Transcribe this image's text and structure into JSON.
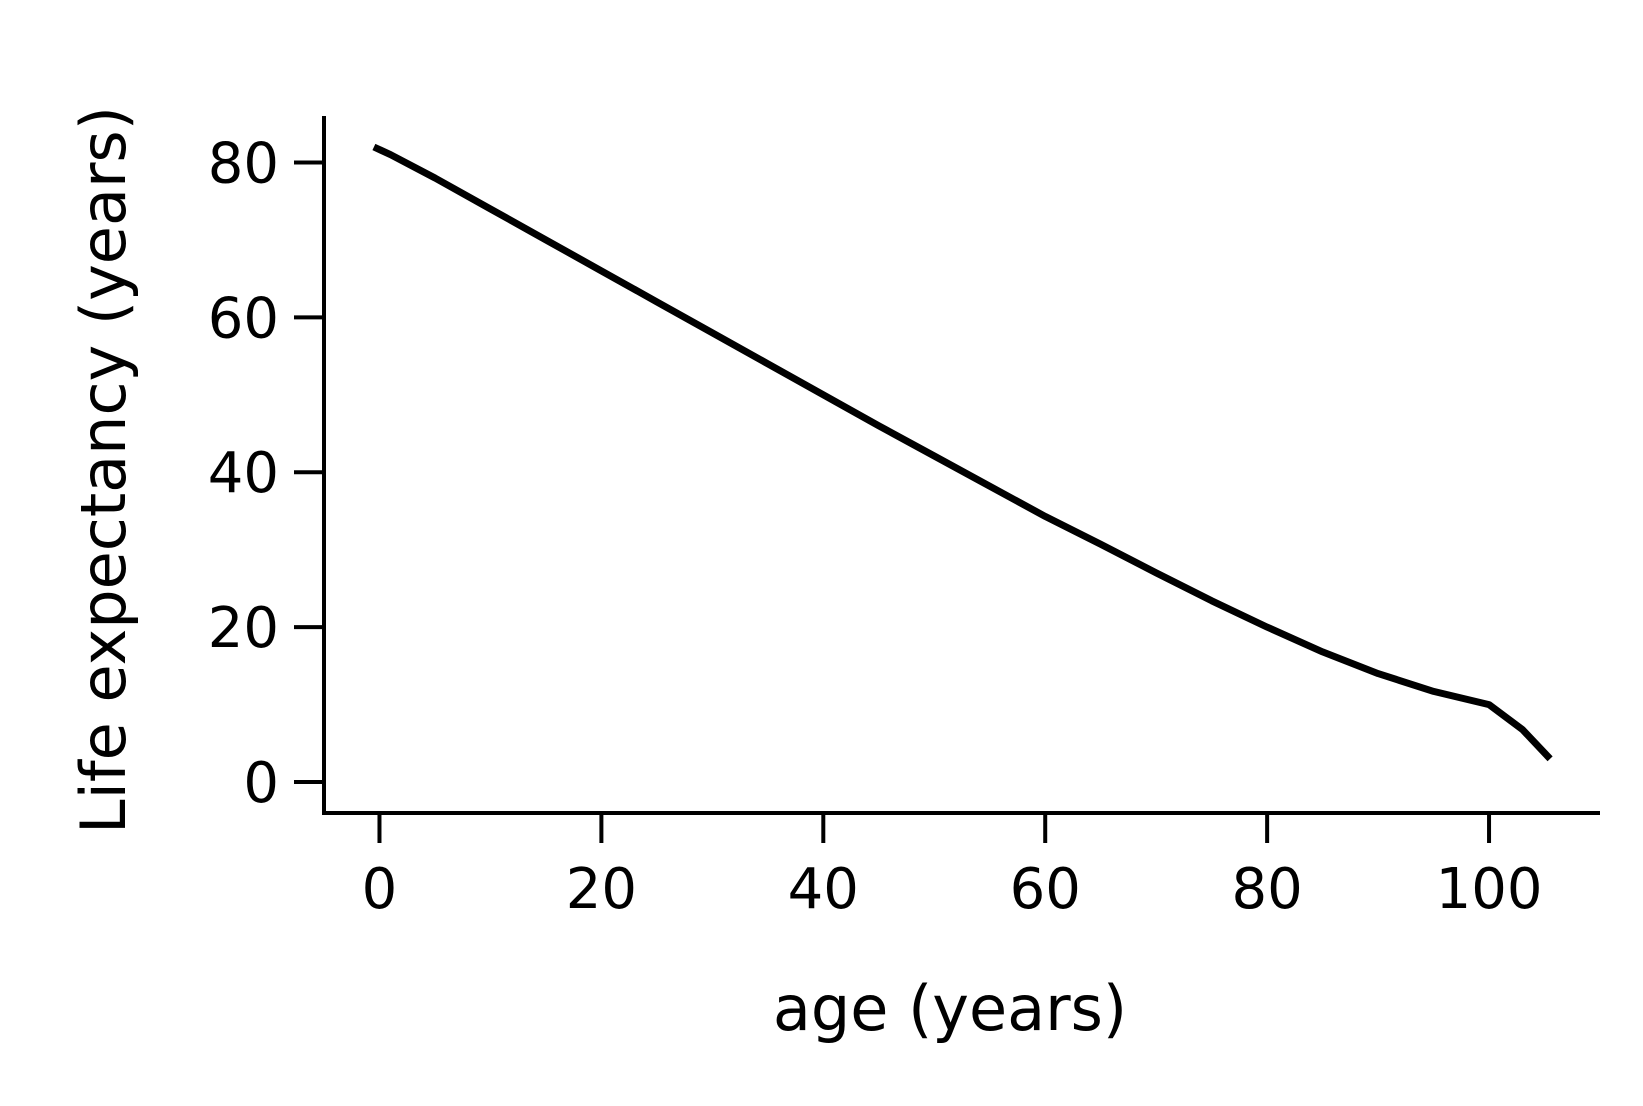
{
  "chart_data": {
    "type": "line",
    "title": "",
    "xlabel": "age (years)",
    "ylabel": "Life expectancy (years)",
    "xlim": [
      -5,
      110
    ],
    "ylim": [
      -4,
      86
    ],
    "xticks": [
      0,
      20,
      40,
      60,
      80,
      100
    ],
    "yticks": [
      0,
      20,
      40,
      60,
      80
    ],
    "grid": false,
    "legend": "none",
    "line_color": "#000000",
    "series": [
      {
        "x": [
          -0.5,
          1,
          5,
          10,
          15,
          20,
          25,
          30,
          35,
          40,
          45,
          50,
          55,
          60,
          65,
          70,
          75,
          80,
          85,
          90,
          95,
          100,
          103,
          105.5
        ],
        "y": [
          82.0,
          81.0,
          78.0,
          74.0,
          70.0,
          66.0,
          62.0,
          58.0,
          54.0,
          50.0,
          46.0,
          42.1,
          38.2,
          34.3,
          30.7,
          27.0,
          23.4,
          20.0,
          16.8,
          14.0,
          11.7,
          10.0,
          6.8,
          3.0
        ]
      }
    ]
  }
}
